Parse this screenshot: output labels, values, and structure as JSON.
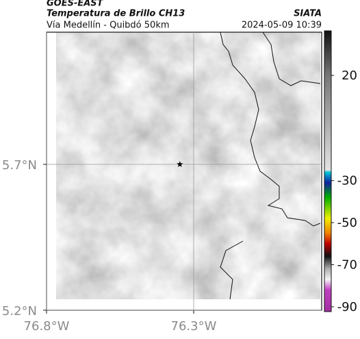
{
  "header": {
    "source": "GOES-EAST",
    "title": "Temperatura de Brillo CH13",
    "subtitle": "Vía Medellín - Quibdó 50km",
    "agency": "SIATA",
    "datetime": "2024-05-09 10:39"
  },
  "map": {
    "xlim": [
      -76.8,
      -75.865
    ],
    "ylim": [
      5.2,
      6.153
    ],
    "xticks": [
      {
        "value": -76.8,
        "label": "76.8°W"
      },
      {
        "value": -76.3,
        "label": "76.3°W"
      }
    ],
    "yticks": [
      {
        "value": 5.2,
        "label": "5.2°N"
      },
      {
        "value": 5.7,
        "label": "5.7°N"
      }
    ],
    "grid": true,
    "marker": {
      "lon": -76.347,
      "lat": 5.7
    }
  },
  "colorbar": {
    "clim": [
      -92.3,
      41.2
    ],
    "ticks": [
      20,
      -30,
      -50,
      -70,
      -90
    ],
    "colormap": [
      {
        "value": 41.2,
        "color": "#111111"
      },
      {
        "value": 20,
        "color": "#777777"
      },
      {
        "value": -25,
        "color": "#e2e2e2"
      },
      {
        "value": -26,
        "color": "#00c8d8"
      },
      {
        "value": -31,
        "color": "#1020a0"
      },
      {
        "value": -38,
        "color": "#00b000"
      },
      {
        "value": -48,
        "color": "#f0f000"
      },
      {
        "value": -55,
        "color": "#f08000"
      },
      {
        "value": -60,
        "color": "#c00000"
      },
      {
        "value": -66,
        "color": "#101010"
      },
      {
        "value": -72,
        "color": "#b0b0b0"
      },
      {
        "value": -77,
        "color": "#f4f4f4"
      },
      {
        "value": -82,
        "color": "#c040c0"
      },
      {
        "value": -92.3,
        "color": "#a030a0"
      }
    ]
  }
}
